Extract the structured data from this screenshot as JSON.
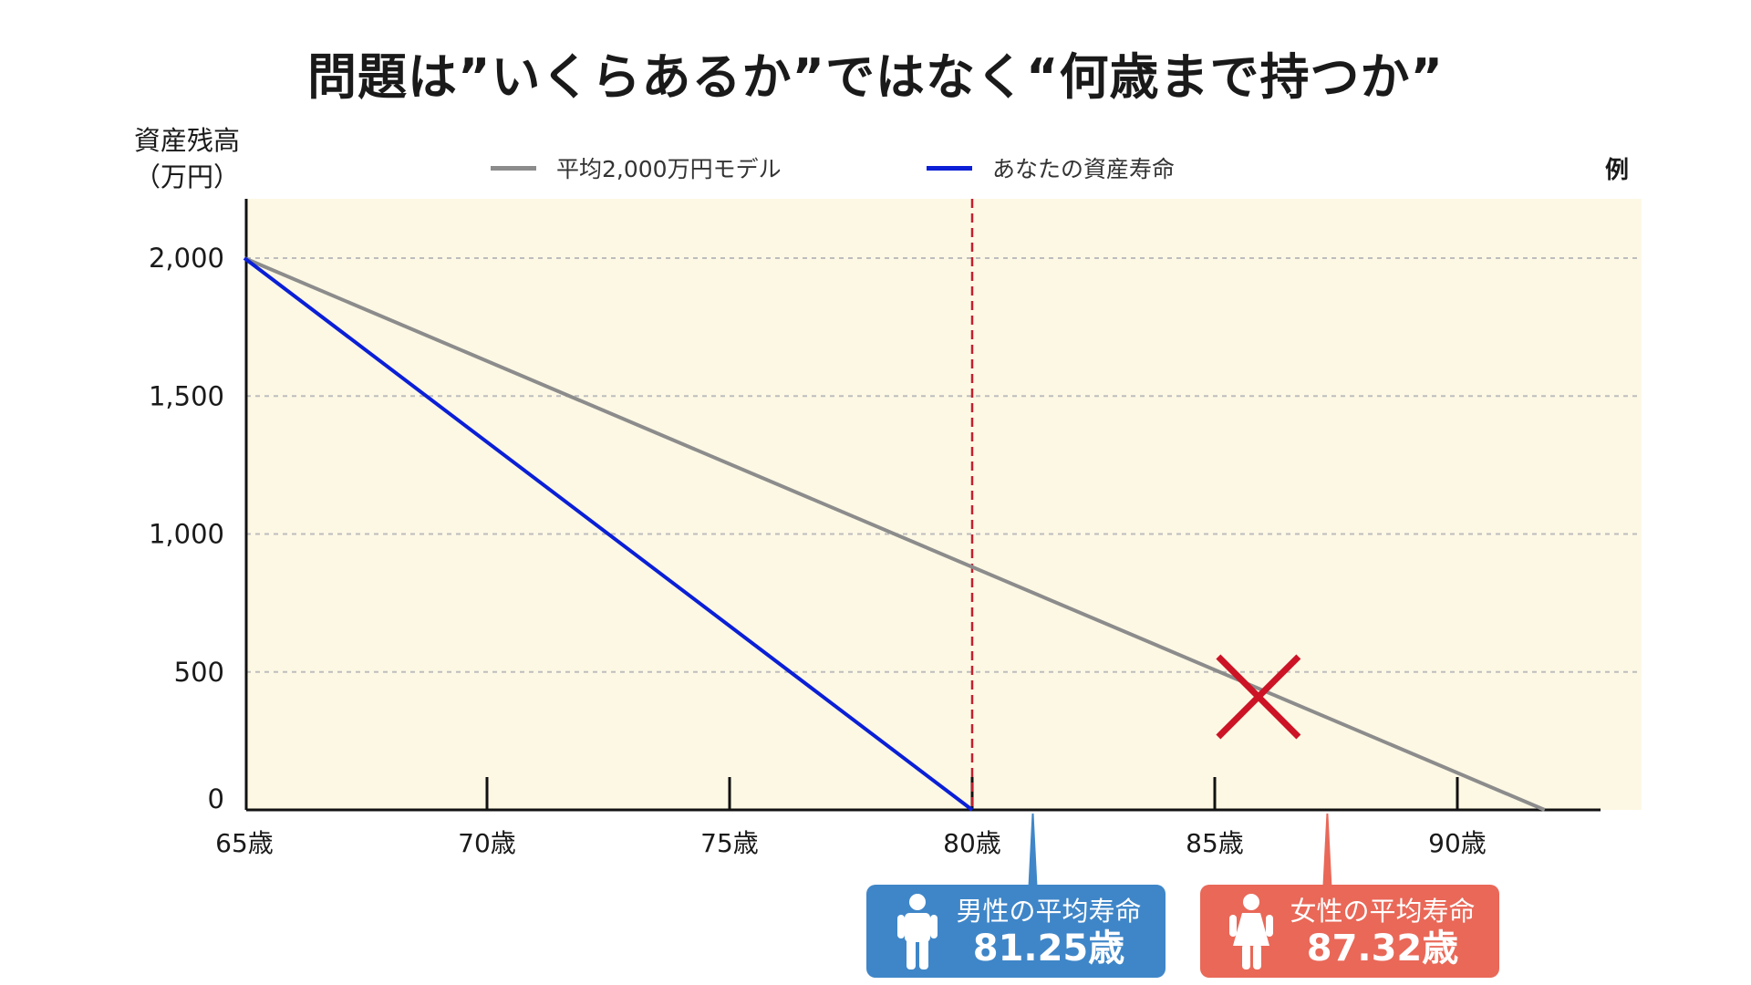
{
  "title": "問題は”いくらあるか”ではなく“何歳まで持つか”",
  "ylabel_line1": "資産残高",
  "ylabel_line2": "（万円）",
  "corner_label": "例",
  "colors": {
    "background": "#fdf8e4",
    "average_model": "#8c8c8c",
    "your_life": "#0a1fd6",
    "dashed_marker": "#c2202f",
    "x_mark": "#cc1426",
    "male_box": "#3f86c8",
    "female_box": "#e96858"
  },
  "chart_data": {
    "type": "line",
    "title": "問題は”いくらあるか”ではなく“何歳まで持つか”",
    "ylabel": "資産残高（万円）",
    "xlabel": "",
    "xlim": [
      65,
      93.5
    ],
    "ylim": [
      0,
      2200
    ],
    "x_ticks": [
      65,
      70,
      75,
      80,
      85,
      90
    ],
    "x_tick_labels": [
      "65歳",
      "70歳",
      "75歳",
      "80歳",
      "85歳",
      "90歳"
    ],
    "y_ticks": [
      0,
      500,
      1000,
      1500,
      2000
    ],
    "y_tick_labels": [
      "0",
      "500",
      "1,000",
      "1,500",
      "2,000"
    ],
    "grid": true,
    "legend_position": "top",
    "series": [
      {
        "name": "平均2,000万円モデル",
        "x": [
          65,
          91.8
        ],
        "y": [
          2000,
          0
        ]
      },
      {
        "name": "あなたの資産寿命",
        "x": [
          65,
          80
        ],
        "y": [
          2000,
          0
        ]
      }
    ],
    "vertical_marker": {
      "x": 80
    },
    "x_mark": {
      "x": 85.9,
      "y": 410
    },
    "callouts": [
      {
        "label": "男性の平均寿命",
        "value": "81.25歳",
        "x": 81.25
      },
      {
        "label": "女性の平均寿命",
        "value": "87.32歳",
        "x": 87.32
      }
    ]
  }
}
